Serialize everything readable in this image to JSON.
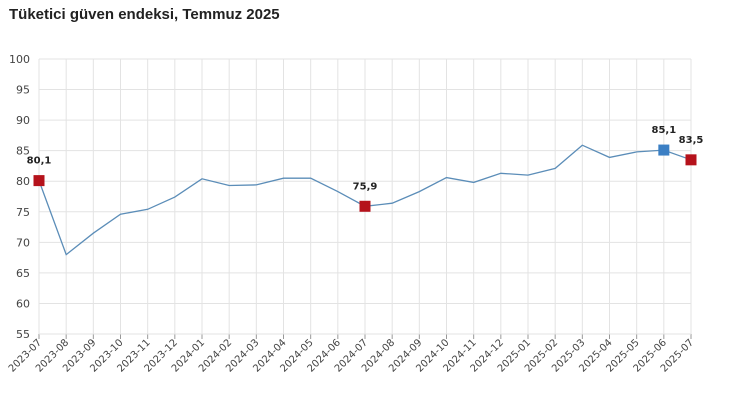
{
  "chart_data": {
    "type": "line",
    "title": "Tüketici güven endeksi, Temmuz 2025",
    "xlabel": "",
    "ylabel": "",
    "ylim": [
      55,
      100
    ],
    "yticks": [
      55,
      60,
      65,
      70,
      75,
      80,
      85,
      90,
      95,
      100
    ],
    "grid": true,
    "categories": [
      "2023-07",
      "2023-08",
      "2023-09",
      "2023-10",
      "2023-11",
      "2023-12",
      "2024-01",
      "2024-02",
      "2024-03",
      "2024-04",
      "2024-05",
      "2024-06",
      "2024-07",
      "2024-08",
      "2024-09",
      "2024-10",
      "2024-11",
      "2024-12",
      "2025-01",
      "2025-02",
      "2025-03",
      "2025-04",
      "2025-05",
      "2025-06",
      "2025-07"
    ],
    "series": [
      {
        "values": [
          80.1,
          68.0,
          71.5,
          74.6,
          75.4,
          77.4,
          80.4,
          79.3,
          79.4,
          80.5,
          80.5,
          78.3,
          75.9,
          76.4,
          78.3,
          80.6,
          79.8,
          81.3,
          81.0,
          82.1,
          85.9,
          83.9,
          84.8,
          85.1,
          83.5
        ],
        "color": "#5b8db8"
      }
    ],
    "highlights": [
      {
        "category": "2023-07",
        "value": 80.1,
        "label": "80,1",
        "color": "#b5121b"
      },
      {
        "category": "2024-07",
        "value": 75.9,
        "label": "75,9",
        "color": "#b5121b"
      },
      {
        "category": "2025-06",
        "value": 85.1,
        "label": "85,1",
        "color": "#3b7fc4"
      },
      {
        "category": "2025-07",
        "value": 83.5,
        "label": "83,5",
        "color": "#b5121b"
      }
    ]
  }
}
